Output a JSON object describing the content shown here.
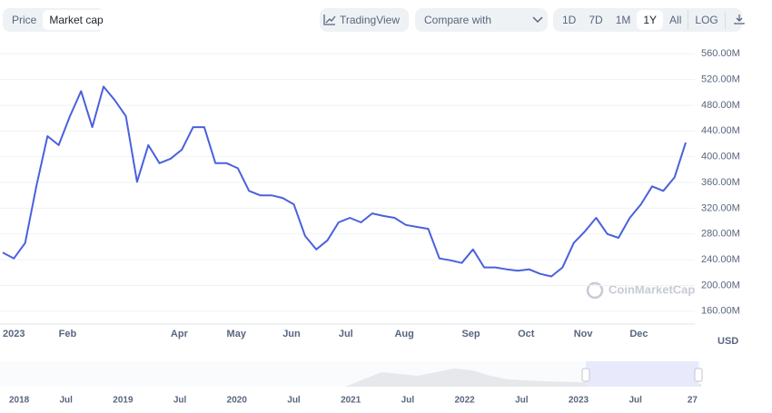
{
  "toolbar": {
    "tabs": [
      "Price",
      "Market cap"
    ],
    "trading_view": "TradingView",
    "compare": "Compare with",
    "ranges": [
      "1D",
      "7D",
      "1M",
      "1Y",
      "All"
    ],
    "log": "LOG"
  },
  "currency": "USD",
  "watermark": "CoinMarketCap",
  "navigator": {
    "labels": [
      "2018",
      "Jul",
      "2019",
      "Jul",
      "2020",
      "Jul",
      "2021",
      "Jul",
      "2022",
      "Jul",
      "2023",
      "Jul",
      "27"
    ]
  },
  "chart_data": {
    "type": "line",
    "color": "#4a61dd",
    "categories": [
      "2023",
      null,
      null,
      null,
      null,
      "Feb",
      null,
      null,
      null,
      null,
      null,
      null,
      null,
      null,
      null,
      "Apr",
      null,
      null,
      null,
      null,
      "May",
      null,
      null,
      null,
      null,
      "Jun",
      null,
      null,
      null,
      null,
      "Jul",
      null,
      null,
      null,
      null,
      "Aug",
      null,
      null,
      null,
      null,
      null,
      "Sep",
      null,
      null,
      null,
      null,
      "Oct",
      null,
      null,
      null,
      null,
      "Nov",
      null,
      null,
      null,
      null,
      "Dec",
      null,
      null,
      null,
      null,
      null
    ],
    "values": [
      251,
      242,
      266,
      354,
      432,
      418,
      463,
      502,
      446,
      509,
      488,
      463,
      361,
      418,
      390,
      397,
      411,
      446,
      446,
      390,
      390,
      382,
      347,
      340,
      340,
      336,
      326,
      277,
      256,
      270,
      298,
      305,
      298,
      312,
      308,
      305,
      294,
      291,
      288,
      242,
      239,
      235,
      256,
      228,
      228,
      225,
      223,
      225,
      218,
      214,
      228,
      266,
      284,
      305,
      280,
      274,
      305,
      326,
      354,
      347,
      368,
      422
    ],
    "ylim": [
      140,
      566
    ],
    "yticks": [
      {
        "value": 160,
        "label": "160.00M"
      },
      {
        "value": 200,
        "label": "200.00M"
      },
      {
        "value": 240,
        "label": "240.00M"
      },
      {
        "value": 280,
        "label": "280.00M"
      },
      {
        "value": 320,
        "label": "320.00M"
      },
      {
        "value": 360,
        "label": "360.00M"
      },
      {
        "value": 400,
        "label": "400.00M"
      },
      {
        "value": 440,
        "label": "440.00M"
      },
      {
        "value": 480,
        "label": "480.00M"
      },
      {
        "value": 520,
        "label": "520.00M"
      },
      {
        "value": 560,
        "label": "560.00M"
      }
    ],
    "grid": true
  }
}
